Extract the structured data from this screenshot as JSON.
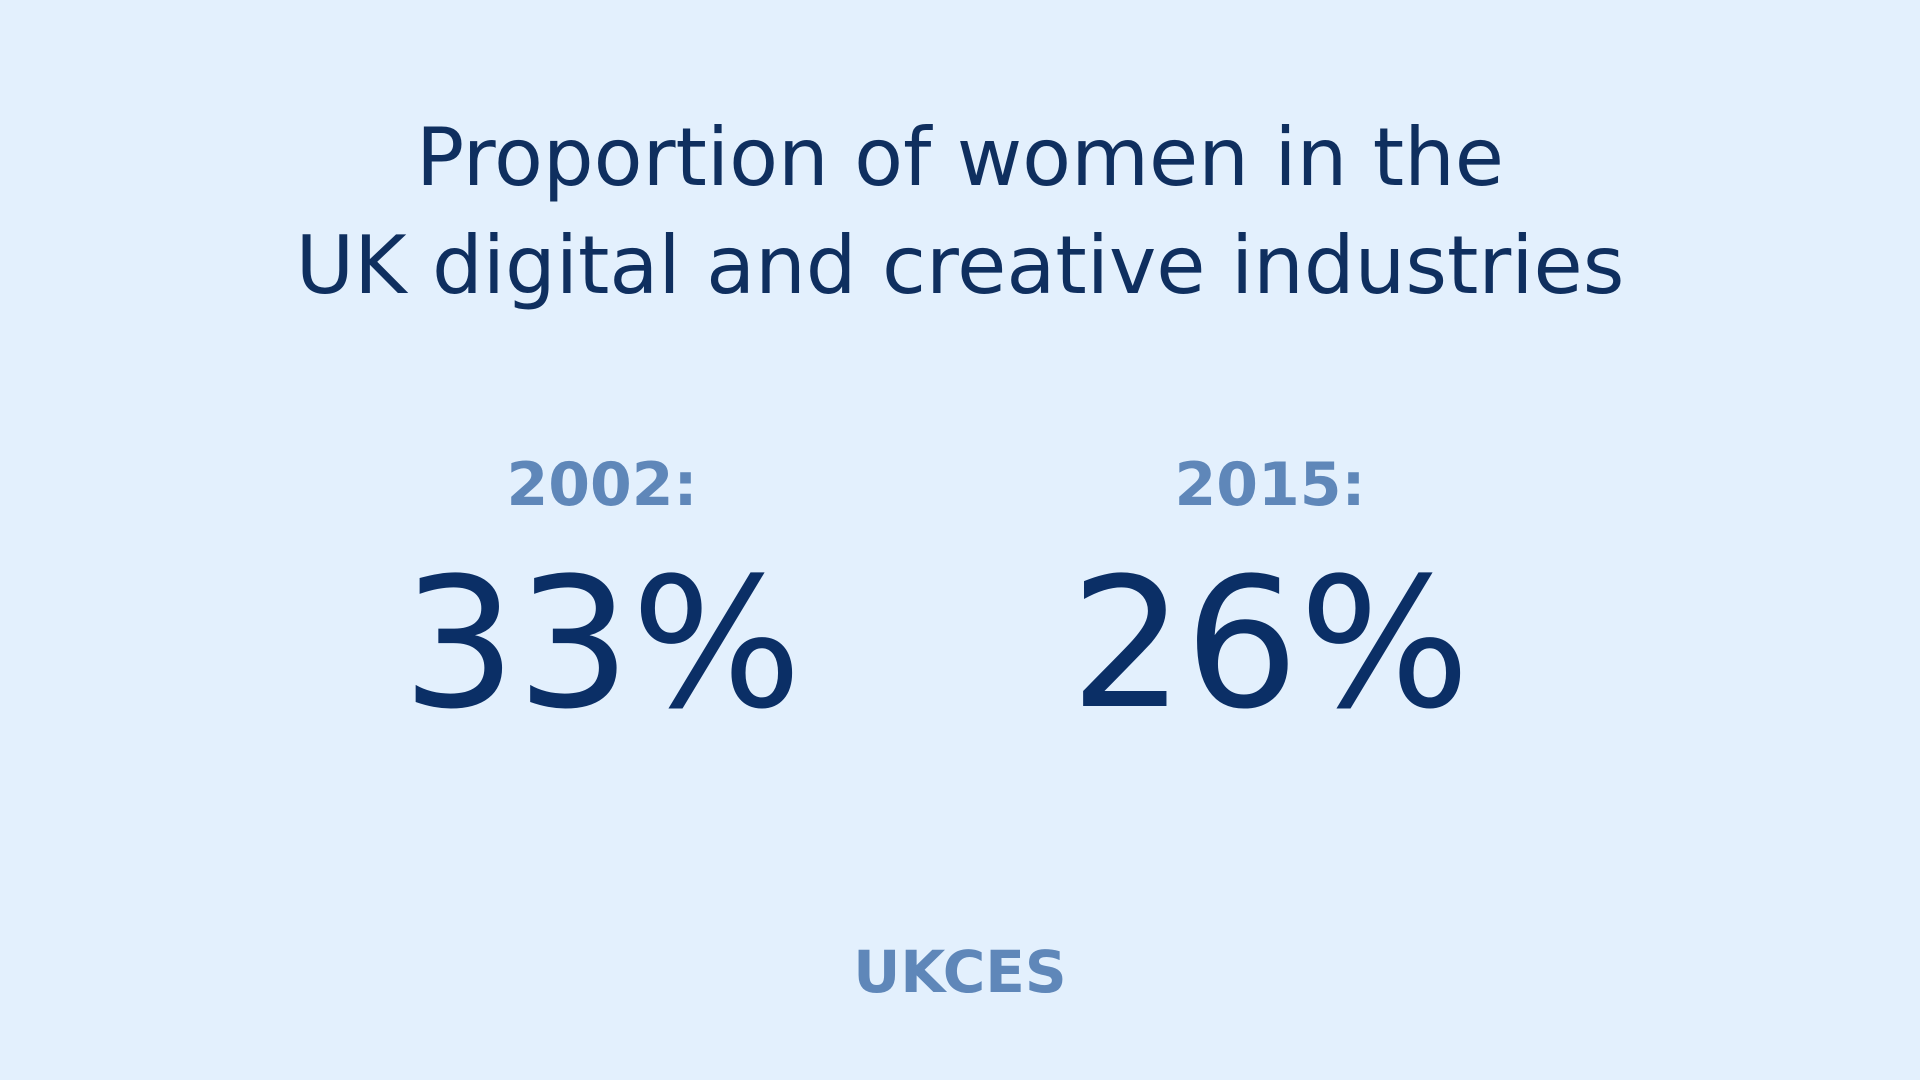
{
  "title_lines": [
    "Proportion of women in the",
    "UK digital and creative industries"
  ],
  "stats": [
    {
      "year": "2002:",
      "value": "33%"
    },
    {
      "year": "2015:",
      "value": "26%"
    }
  ],
  "source": "UKCES"
}
